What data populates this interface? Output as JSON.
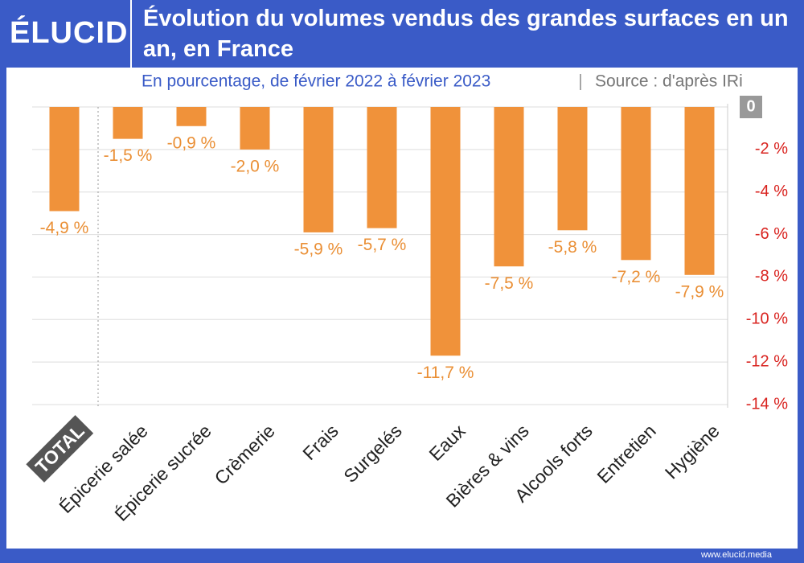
{
  "brand": "ÉLUCID",
  "footer": "www.elucid.media",
  "chart_data": {
    "type": "bar",
    "title": "Évolution du volumes vendus des grandes surfaces en un an, en France",
    "subtitle": "En pourcentage, de février 2022 à février 2023",
    "source": "Source : d'après IRi",
    "categories": [
      "TOTAL",
      "Épicerie salée",
      "Épicerie sucrée",
      "Crèmerie",
      "Frais",
      "Surgelés",
      "Eaux",
      "Bières & vins",
      "Alcools forts",
      "Entretien",
      "Hygiène"
    ],
    "values": [
      -4.9,
      -1.5,
      -0.9,
      -2.0,
      -5.9,
      -5.7,
      -11.7,
      -7.5,
      -5.8,
      -7.2,
      -7.9
    ],
    "value_labels": [
      "-4,9 %",
      "-1,5 %",
      "-0,9 %",
      "-2,0 %",
      "-5,9 %",
      "-5,7 %",
      "-11,7 %",
      "-7,5 %",
      "-5,8 %",
      "-7,2 %",
      "-7,9 %"
    ],
    "color": "#f0923a",
    "ylim": [
      0,
      -14
    ],
    "yticks": [
      0,
      {
        "value": -2,
        "label": "-2 %"
      },
      {
        "value": -4,
        "label": "-4 %"
      },
      {
        "value": -6,
        "label": "-6 %"
      },
      {
        "value": -8,
        "label": "-8 %"
      },
      {
        "value": -10,
        "label": "-10 %"
      },
      {
        "value": -12,
        "label": "-12 %"
      },
      {
        "value": -14,
        "label": "-14 %"
      }
    ],
    "grid": true
  }
}
